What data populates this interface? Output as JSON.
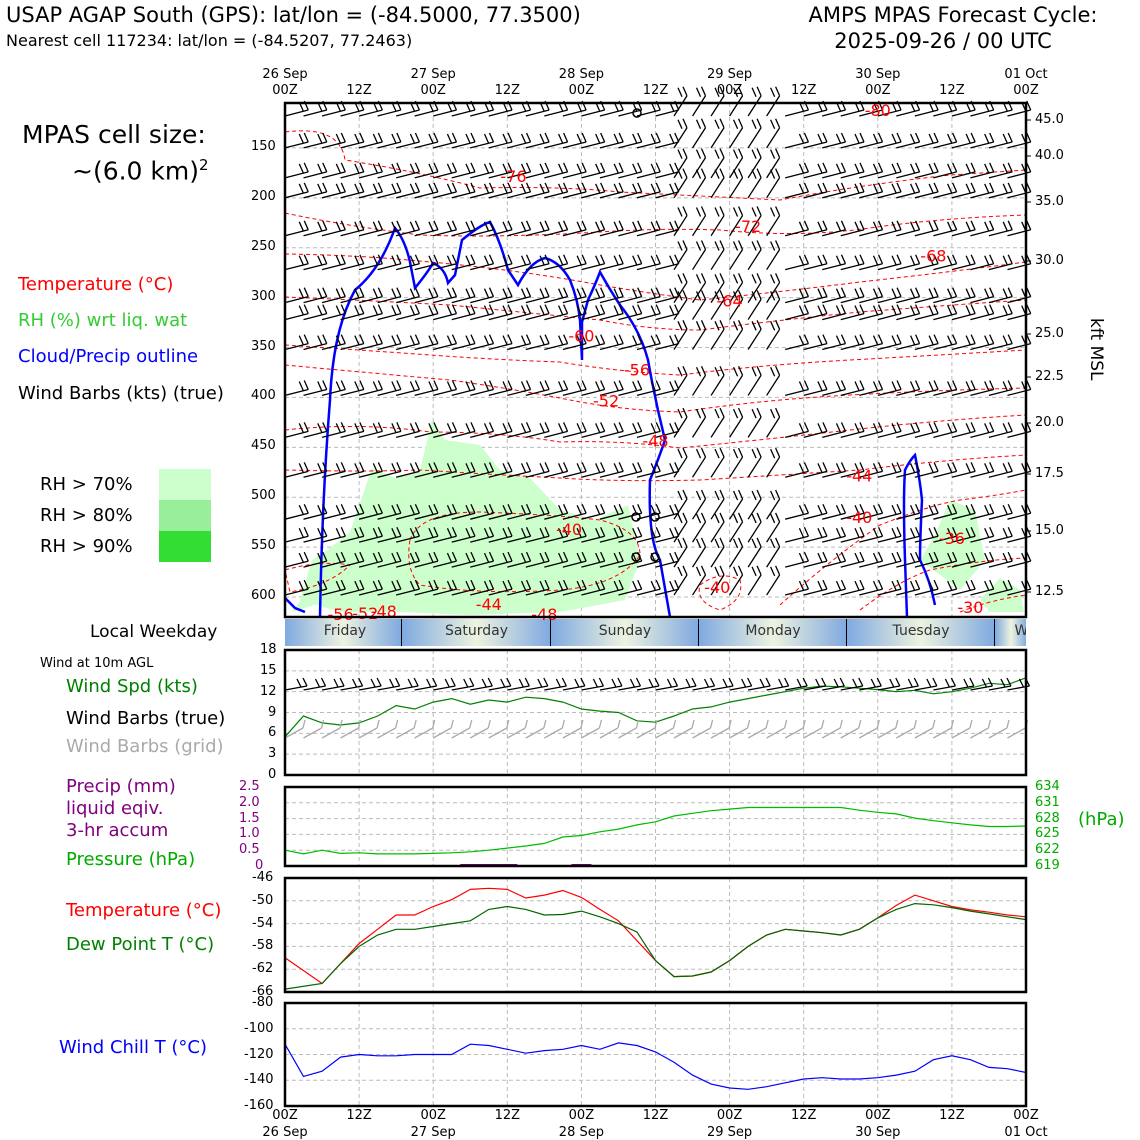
{
  "header": {
    "title_left": "USAP AGAP South (GPS): lat/lon = (-84.5000, 77.3500)",
    "subtitle_left": "Nearest cell 117234: lat/lon = (-84.5207, 77.2463)",
    "title_right_1": "AMPS MPAS Forecast Cycle:",
    "title_right_2": "2025-09-26 / 00 UTC"
  },
  "legend": {
    "cell_size_1": "MPAS cell size:",
    "cell_size_2": "~(6.0 km)",
    "cell_size_sup": "2",
    "temperature": "Temperature (°C)",
    "rh": "RH (%) wrt liq. wat",
    "cloud": "Cloud/Precip outline",
    "barbs": "Wind Barbs (kts) (true)",
    "rh70": "RH > 70%",
    "rh80": "RH > 80%",
    "rh90": "RH > 90%",
    "colors": {
      "temp": "#ff0000",
      "rh": "#33cc33",
      "cloud": "#0000ff",
      "rh70": "#ccffcc",
      "rh80": "#99ee99",
      "rh90": "#33dd33"
    }
  },
  "time_axis": {
    "top_dates": [
      "26 Sep",
      "27 Sep",
      "28 Sep",
      "29 Sep",
      "30 Sep",
      "01 Oct"
    ],
    "top_hours": [
      "00Z",
      "12Z",
      "00Z",
      "12Z",
      "00Z",
      "12Z",
      "00Z",
      "12Z",
      "00Z",
      "12Z",
      "00Z"
    ],
    "bottom_hours": [
      "00Z",
      "12Z",
      "00Z",
      "12Z",
      "00Z",
      "12Z",
      "00Z",
      "12Z",
      "00Z",
      "12Z",
      "00Z"
    ],
    "bottom_dates": [
      "26 Sep",
      "27 Sep",
      "28 Sep",
      "29 Sep",
      "30 Sep",
      "01 Oct"
    ]
  },
  "weekday_bar": {
    "label": "Local Weekday",
    "days": [
      "Friday",
      "Saturday",
      "Sunday",
      "Monday",
      "Tuesday",
      "Wednesday"
    ]
  },
  "panel_labels": {
    "wind10m": "Wind at 10m AGL",
    "wind_spd": "Wind Spd (kts)",
    "barbs_true": "Wind Barbs (true)",
    "barbs_grid": "Wind Barbs (grid)",
    "precip_1": "Precip (mm)",
    "precip_2": "liquid eqiv.",
    "precip_3": "3-hr accum",
    "pressure": "Pressure (hPa)",
    "pressure_unit": "(hPa)",
    "temperature": "Temperature (°C)",
    "dewpoint": "Dew Point T (°C)",
    "windchill": "Wind Chill T (°C)",
    "kft": "kft MSL"
  },
  "chart_data": [
    {
      "type": "heatmap",
      "name": "cross-section",
      "x_hours": [
        0,
        120
      ],
      "yleft_ticks": [
        "150",
        "200",
        "250",
        "300",
        "350",
        "400",
        "450",
        "500",
        "550",
        "600"
      ],
      "yright_ticks": [
        "45.0",
        "40.0",
        "35.0",
        "30.0",
        "25.0",
        "22.5",
        "20.0",
        "17.5",
        "15.0",
        "12.5"
      ],
      "ylim_hpa": [
        105,
        620
      ],
      "temp_contour_labels": [
        {
          "text": "-80",
          "hour": 96,
          "hpa": 112
        },
        {
          "text": "-76",
          "hour": 37,
          "hpa": 178
        },
        {
          "text": "-72",
          "hour": 75,
          "hpa": 228
        },
        {
          "text": "-68",
          "hour": 105,
          "hpa": 258
        },
        {
          "text": "-64",
          "hour": 72,
          "hpa": 303
        },
        {
          "text": "-60",
          "hour": 48,
          "hpa": 338
        },
        {
          "text": "-56",
          "hour": 57,
          "hpa": 372
        },
        {
          "text": "-52",
          "hour": 52,
          "hpa": 403
        },
        {
          "text": "-48",
          "hour": 60,
          "hpa": 443
        },
        {
          "text": "-44",
          "hour": 93,
          "hpa": 478
        },
        {
          "text": "-40",
          "hour": 46,
          "hpa": 532
        },
        {
          "text": "-40",
          "hour": 70,
          "hpa": 590
        },
        {
          "text": "-40",
          "hour": 93,
          "hpa": 520
        },
        {
          "text": "-36",
          "hour": 108,
          "hpa": 541
        },
        {
          "text": "-44",
          "hour": 33,
          "hpa": 607
        },
        {
          "text": "-48",
          "hour": 42,
          "hpa": 617
        },
        {
          "text": "-48",
          "hour": 16,
          "hpa": 614
        },
        {
          "text": "-52",
          "hour": 13,
          "hpa": 616
        },
        {
          "text": "-56",
          "hour": 9,
          "hpa": 617
        },
        {
          "text": "-30",
          "hour": 111,
          "hpa": 610
        }
      ]
    },
    {
      "type": "line",
      "name": "wind-speed",
      "ylim": [
        0,
        18
      ],
      "yticks": [
        "0",
        "3",
        "6",
        "9",
        "12",
        "15",
        "18"
      ],
      "x": [
        0,
        3,
        6,
        9,
        12,
        15,
        18,
        21,
        24,
        27,
        30,
        33,
        36,
        39,
        42,
        45,
        48,
        51,
        54,
        57,
        60,
        63,
        66,
        69,
        72,
        75,
        78,
        81,
        84,
        87,
        90,
        93,
        96,
        99,
        102,
        105,
        108,
        111,
        114,
        117,
        120
      ],
      "series": [
        {
          "values": [
            5.5,
            8.5,
            7.5,
            7.2,
            7.5,
            8.5,
            10.0,
            9.5,
            10.5,
            11.0,
            10.2,
            10.8,
            10.5,
            11.2,
            11.0,
            10.5,
            9.5,
            9.2,
            9.0,
            7.8,
            7.6,
            8.5,
            9.5,
            9.8,
            10.5,
            11.0,
            11.5,
            12.0,
            12.5,
            12.8,
            12.7,
            12.5,
            12.3,
            12.0,
            12.2,
            11.7,
            12.0,
            12.5,
            13.2,
            13.0,
            14.0
          ]
        }
      ]
    },
    {
      "type": "line",
      "name": "precip-pressure",
      "ylim_precip": [
        0,
        2.5
      ],
      "precip_ticks": [
        "0",
        "0.5",
        "1.0",
        "1.5",
        "2.0",
        "2.5"
      ],
      "ylim_pressure": [
        619,
        634
      ],
      "pressure_ticks": [
        "619",
        "622",
        "625",
        "628",
        "631",
        "634"
      ],
      "x": [
        0,
        3,
        6,
        9,
        12,
        15,
        18,
        21,
        24,
        27,
        30,
        33,
        36,
        39,
        42,
        45,
        48,
        51,
        54,
        57,
        60,
        63,
        66,
        69,
        72,
        75,
        78,
        81,
        84,
        87,
        90,
        93,
        96,
        99,
        102,
        105,
        108,
        111,
        114,
        117,
        120
      ],
      "series": [
        {
          "values": [
            622.0,
            621.3,
            622.0,
            621.4,
            621.5,
            621.3,
            621.3,
            621.3,
            621.4,
            621.5,
            621.7,
            622.0,
            622.4,
            622.8,
            623.3,
            624.5,
            624.8,
            625.5,
            626.0,
            626.8,
            627.4,
            628.5,
            629.0,
            629.5,
            629.8,
            630.1,
            630.1,
            630.1,
            630.1,
            630.1,
            630.1,
            629.6,
            629.2,
            628.9,
            628.1,
            627.6,
            627.2,
            626.8,
            626.5,
            626.5,
            626.6
          ]
        },
        {
          "values": [
            0,
            0,
            0,
            0,
            0,
            0,
            0,
            0,
            0,
            0,
            0.02,
            0.03,
            0.02,
            0,
            0,
            0,
            0.01,
            0,
            0,
            0,
            0,
            0,
            0,
            0,
            0,
            0,
            0,
            0,
            0,
            0,
            0,
            0,
            0,
            0,
            0,
            0,
            0,
            0,
            0,
            0,
            0
          ]
        }
      ]
    },
    {
      "type": "line",
      "name": "temperature-dewpoint",
      "ylim": [
        -66,
        -46
      ],
      "yticks": [
        "-66",
        "-62",
        "-58",
        "-54",
        "-50",
        "-46"
      ],
      "x": [
        0,
        6,
        9,
        12,
        15,
        18,
        21,
        24,
        27,
        30,
        33,
        36,
        39,
        42,
        45,
        48,
        51,
        54,
        57,
        60,
        63,
        66,
        69,
        72,
        75,
        78,
        81,
        84,
        87,
        90,
        93,
        96,
        99,
        102,
        105,
        108,
        111,
        114,
        117,
        120
      ],
      "series": [
        {
          "values": [
            -60.0,
            -64.5,
            -61.0,
            -57.5,
            -55.0,
            -52.5,
            -52.5,
            -51.0,
            -49.8,
            -48.0,
            -47.8,
            -48.0,
            -49.5,
            -49.0,
            -48.2,
            -49.4,
            -51.5,
            -53.5,
            -57.0,
            -60.5,
            -63.3,
            -63.2,
            -62.5,
            -60.5,
            -58.0,
            -56.0,
            -55.0,
            -55.3,
            -55.6,
            -56.0,
            -55.0,
            -53.0,
            -50.8,
            -49.0,
            -50.0,
            -51.0,
            -51.6,
            -52.0,
            -52.5,
            -52.8
          ]
        },
        {
          "values": [
            -65.5,
            -64.5,
            -61.0,
            -58.0,
            -56.0,
            -55.0,
            -55.0,
            -54.5,
            -54.0,
            -53.5,
            -51.5,
            -51.0,
            -51.5,
            -52.5,
            -52.4,
            -51.8,
            -52.8,
            -54.0,
            -55.5,
            -60.5,
            -63.3,
            -63.2,
            -62.5,
            -60.5,
            -58.0,
            -56.0,
            -55.0,
            -55.3,
            -55.6,
            -56.0,
            -55.0,
            -53.0,
            -51.5,
            -50.5,
            -50.7,
            -51.2,
            -51.8,
            -52.3,
            -52.8,
            -53.3
          ]
        }
      ]
    },
    {
      "type": "line",
      "name": "wind-chill",
      "ylim": [
        -160,
        -80
      ],
      "yticks": [
        "-160",
        "-140",
        "-120",
        "-100",
        "-80"
      ],
      "x": [
        0,
        3,
        6,
        9,
        12,
        15,
        18,
        21,
        24,
        27,
        30,
        33,
        36,
        39,
        42,
        45,
        48,
        51,
        54,
        57,
        60,
        63,
        66,
        69,
        72,
        75,
        78,
        81,
        84,
        87,
        90,
        93,
        96,
        99,
        102,
        105,
        108,
        111,
        114,
        117,
        120
      ],
      "series": [
        {
          "values": [
            -112,
            -137,
            -133,
            -122,
            -120,
            -121,
            -121,
            -120,
            -120,
            -120,
            -112,
            -113,
            -116,
            -119,
            -117,
            -116,
            -113,
            -116,
            -111,
            -113,
            -118,
            -126,
            -136,
            -143,
            -146,
            -147,
            -145,
            -142,
            -139,
            -138,
            -139,
            -139,
            -138,
            -136,
            -133,
            -124,
            -121,
            -124,
            -130,
            -131,
            -134
          ]
        }
      ]
    }
  ]
}
